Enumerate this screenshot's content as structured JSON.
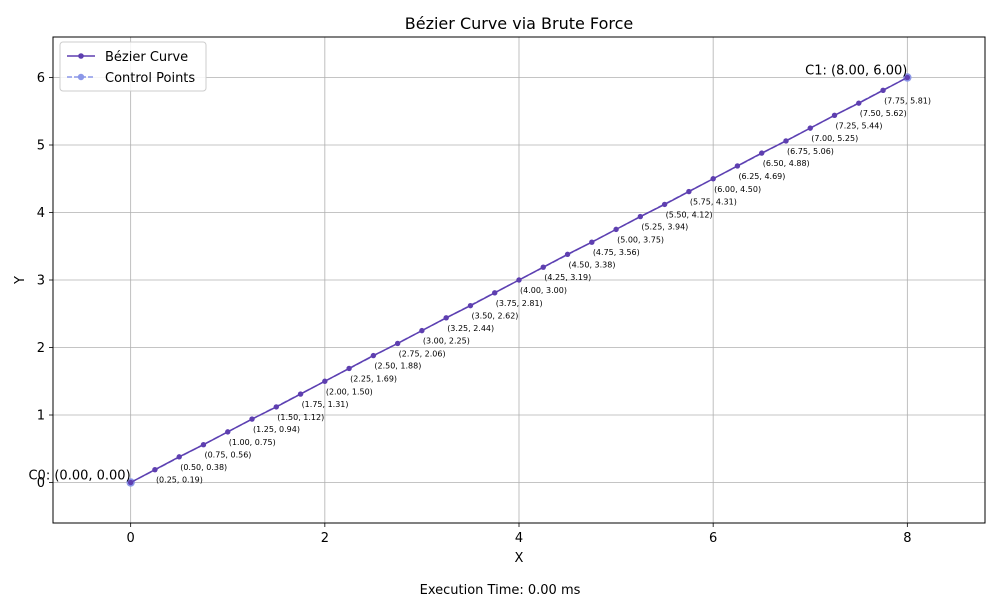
{
  "chart_data": {
    "type": "line",
    "title": "Bézier Curve via Brute Force",
    "xlabel": "X",
    "ylabel": "Y",
    "xlim": [
      -0.8,
      8.8
    ],
    "ylim": [
      -0.6,
      6.6
    ],
    "xticks": [
      0,
      2,
      4,
      6,
      8
    ],
    "yticks": [
      0,
      1,
      2,
      3,
      4,
      5,
      6
    ],
    "grid": true,
    "legend_position": "top-left",
    "series": [
      {
        "name": "Bézier Curve",
        "color": "#5e3fb0",
        "style": "solid",
        "marker": "circle",
        "x": [
          0,
          0.25,
          0.5,
          0.75,
          1.0,
          1.25,
          1.5,
          1.75,
          2.0,
          2.25,
          2.5,
          2.75,
          3.0,
          3.25,
          3.5,
          3.75,
          4.0,
          4.25,
          4.5,
          4.75,
          5.0,
          5.25,
          5.5,
          5.75,
          6.0,
          6.25,
          6.5,
          6.75,
          7.0,
          7.25,
          7.5,
          7.75,
          8.0
        ],
        "y": [
          0,
          0.19,
          0.38,
          0.56,
          0.75,
          0.94,
          1.12,
          1.31,
          1.5,
          1.69,
          1.88,
          2.06,
          2.25,
          2.44,
          2.62,
          2.81,
          3.0,
          3.19,
          3.38,
          3.56,
          3.75,
          3.94,
          4.12,
          4.31,
          4.5,
          4.69,
          4.88,
          5.06,
          5.25,
          5.44,
          5.62,
          5.81,
          6.0
        ]
      },
      {
        "name": "Control Points",
        "color": "#8b97e8",
        "style": "dashed",
        "marker": "circle",
        "x": [
          0,
          8
        ],
        "y": [
          0,
          6
        ]
      }
    ],
    "point_labels": [
      "(0.25, 0.19)",
      "(0.50, 0.38)",
      "(0.75, 0.56)",
      "(1.00, 0.75)",
      "(1.25, 0.94)",
      "(1.50, 1.12)",
      "(1.75, 1.31)",
      "(2.00, 1.50)",
      "(2.25, 1.69)",
      "(2.50, 1.88)",
      "(2.75, 2.06)",
      "(3.00, 2.25)",
      "(3.25, 2.44)",
      "(3.50, 2.62)",
      "(3.75, 2.81)",
      "(4.00, 3.00)",
      "(4.25, 3.19)",
      "(4.50, 3.38)",
      "(4.75, 3.56)",
      "(5.00, 3.75)",
      "(5.25, 3.94)",
      "(5.50, 4.12)",
      "(5.75, 4.31)",
      "(6.00, 4.50)",
      "(6.25, 4.69)",
      "(6.50, 4.88)",
      "(6.75, 5.06)",
      "(7.00, 5.25)",
      "(7.25, 5.44)",
      "(7.50, 5.62)",
      "(7.75, 5.81)"
    ],
    "control_labels": [
      "C0: (0.00, 0.00)",
      "C1: (8.00, 6.00)"
    ]
  },
  "footer": "Execution Time: 0.00 ms"
}
